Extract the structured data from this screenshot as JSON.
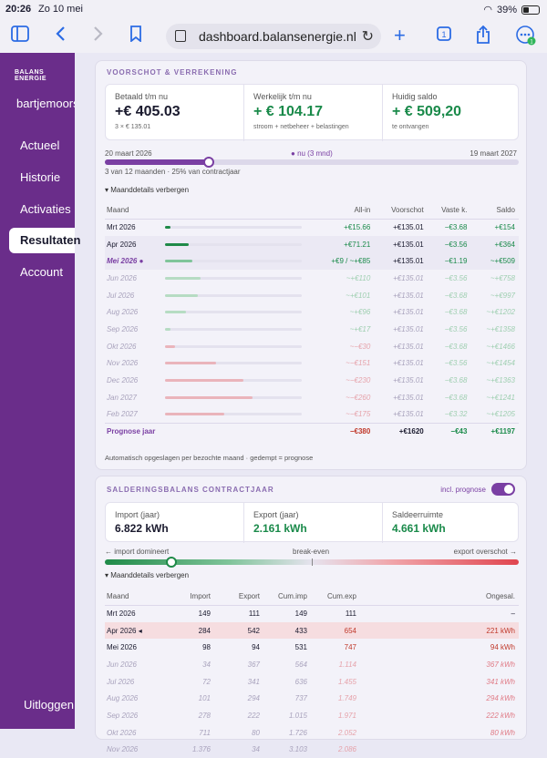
{
  "status": {
    "time": "20:26",
    "date": "Zo 10 mei",
    "battery": "39%"
  },
  "browser": {
    "url": "dashboard.balansenergie.nl",
    "tabs_count": "1",
    "badge": "1"
  },
  "sidebar": {
    "logo": "BALANS ENERGIE",
    "user": "bartjemoorsel",
    "items": [
      {
        "label": "Actueel",
        "active": false
      },
      {
        "label": "Historie",
        "active": false
      },
      {
        "label": "Activaties",
        "active": false
      },
      {
        "label": "Resultaten",
        "active": true
      },
      {
        "label": "Account",
        "active": false
      }
    ],
    "logout": "Uitloggen"
  },
  "voorschot": {
    "title": "VOORSCHOT & VERREKENING",
    "cards": [
      {
        "label": "Betaald t/m nu",
        "value": "+€ 405.03",
        "sub": "3 × € 135.01",
        "color": "#1a1a2e"
      },
      {
        "label": "Werkelijk t/m nu",
        "value": "+ € 104.17",
        "sub": "stroom + netbeheer + belastingen",
        "color": "#1a8a4a"
      },
      {
        "label": "Huidig saldo",
        "value": "+ € 509,20",
        "sub": "te ontvangen",
        "color": "#1a8a4a"
      }
    ],
    "start_date": "20 maart 2026",
    "now_label": "nu (3 mnd)",
    "end_date": "19 maart 2027",
    "progress": 0.25,
    "progress_text": "3 van 12 maanden · 25% van contractjaar",
    "toggle": "▾ Maanddetails verbergen",
    "headers": [
      "Maand",
      "All-in",
      "Voorschot",
      "Vaste k.",
      "Saldo"
    ],
    "rows": [
      {
        "month": "Mrt 2026",
        "allin": "+€15.66",
        "voorschot": "+€135.01",
        "vast": "−€3.68",
        "saldo": "+€154",
        "bar": 0.04,
        "barColor": "#1f8a48",
        "kind": "actual"
      },
      {
        "month": "Apr 2026",
        "allin": "+€71.21",
        "voorschot": "+€135.01",
        "vast": "−€3.56",
        "saldo": "+€364",
        "bar": 0.17,
        "barColor": "#1f8a48",
        "kind": "actual"
      },
      {
        "month": "Mei 2026 ●",
        "allin": "+€9 / ~+€85",
        "voorschot": "+€135.01",
        "vast": "−€1.19",
        "saldo": "~+€509",
        "bar": 0.2,
        "barColor": "#7fc49a",
        "kind": "current"
      },
      {
        "month": "Jun 2026",
        "allin": "~+€110",
        "voorschot": "+€135.01",
        "vast": "−€3.56",
        "saldo": "~+€758",
        "bar": 0.26,
        "barColor": "#b6dcc3",
        "kind": "forecast"
      },
      {
        "month": "Jul 2026",
        "allin": "~+€101",
        "voorschot": "+€135.01",
        "vast": "−€3.68",
        "saldo": "~+€997",
        "bar": 0.24,
        "barColor": "#b6dcc3",
        "kind": "forecast"
      },
      {
        "month": "Aug 2026",
        "allin": "~+€96",
        "voorschot": "+€135.01",
        "vast": "−€3.68",
        "saldo": "~+€1202",
        "bar": 0.15,
        "barColor": "#b6dcc3",
        "kind": "forecast"
      },
      {
        "month": "Sep 2026",
        "allin": "~+€17",
        "voorschot": "+€135.01",
        "vast": "−€3.56",
        "saldo": "~+€1358",
        "bar": 0.04,
        "barColor": "#b6dcc3",
        "kind": "forecast"
      },
      {
        "month": "Okt 2026",
        "allin": "~−€30",
        "voorschot": "+€135.01",
        "vast": "−€3.68",
        "saldo": "~+€1466",
        "bar": 0.07,
        "barColor": "#eab4bb",
        "kind": "forecast"
      },
      {
        "month": "Nov 2026",
        "allin": "~−€151",
        "voorschot": "+€135.01",
        "vast": "−€3.56",
        "saldo": "~+€1454",
        "bar": 0.37,
        "barColor": "#eab4bb",
        "kind": "forecast"
      },
      {
        "month": "Dec 2026",
        "allin": "~−€230",
        "voorschot": "+€135.01",
        "vast": "−€3.68",
        "saldo": "~+€1363",
        "bar": 0.57,
        "barColor": "#eab4bb",
        "kind": "forecast"
      },
      {
        "month": "Jan 2027",
        "allin": "~−€260",
        "voorschot": "+€135.01",
        "vast": "−€3.68",
        "saldo": "~+€1241",
        "bar": 0.64,
        "barColor": "#eab4bb",
        "kind": "forecast"
      },
      {
        "month": "Feb 2027",
        "allin": "~−€175",
        "voorschot": "+€135.01",
        "vast": "−€3.32",
        "saldo": "~+€1205",
        "bar": 0.43,
        "barColor": "#eab4bb",
        "kind": "forecast"
      }
    ],
    "total": {
      "label": "Prognose jaar",
      "allin": "−€380",
      "voorschot": "+€1620",
      "vast": "−€43",
      "saldo": "+€1197"
    },
    "footnote": "Automatisch opgeslagen per bezochte maand · gedempt = prognose"
  },
  "saldering": {
    "title": "SALDERINGSBALANS CONTRACTJAAR",
    "incl_label": "incl. prognose",
    "cards": [
      {
        "label": "Import (jaar)",
        "value": "6.822 kWh",
        "color": "#1a1a2e"
      },
      {
        "label": "Export (jaar)",
        "value": "2.161 kWh",
        "color": "#1a8a4a"
      },
      {
        "label": "Saldeerruimte",
        "value": "4.661 kWh",
        "color": "#1a8a4a"
      }
    ],
    "left_label": "← import domineert",
    "mid_label": "break-even",
    "right_label": "export overschot →",
    "balance": 0.16,
    "toggle": "▾ Maanddetails verbergen",
    "headers": [
      "Maand",
      "Import",
      "Export",
      "Cum.imp",
      "Cum.exp",
      "Ongesal."
    ],
    "rows": [
      {
        "month": "Mrt 2026",
        "imp": "149",
        "exp": "111",
        "cimp": "149",
        "cexp": "111",
        "ong": "–",
        "kind": "actual"
      },
      {
        "month": "Apr 2026 ◂",
        "imp": "284",
        "exp": "542",
        "cimp": "433",
        "cexp": "654",
        "ong": "221 kWh",
        "kind": "highlight"
      },
      {
        "month": "Mei 2026",
        "imp": "98",
        "exp": "94",
        "cimp": "531",
        "cexp": "747",
        "ong": "94 kWh",
        "kind": "actual"
      },
      {
        "month": "Jun 2026",
        "imp": "34",
        "exp": "367",
        "cimp": "564",
        "cexp": "1.114",
        "ong": "367 kWh",
        "kind": "forecast"
      },
      {
        "month": "Jul 2026",
        "imp": "72",
        "exp": "341",
        "cimp": "636",
        "cexp": "1.455",
        "ong": "341 kWh",
        "kind": "forecast"
      },
      {
        "month": "Aug 2026",
        "imp": "101",
        "exp": "294",
        "cimp": "737",
        "cexp": "1.749",
        "ong": "294 kWh",
        "kind": "forecast"
      },
      {
        "month": "Sep 2026",
        "imp": "278",
        "exp": "222",
        "cimp": "1.015",
        "cexp": "1.971",
        "ong": "222 kWh",
        "kind": "forecast"
      },
      {
        "month": "Okt 2026",
        "imp": "711",
        "exp": "80",
        "cimp": "1.726",
        "cexp": "2.052",
        "ong": "80 kWh",
        "kind": "forecast"
      },
      {
        "month": "Nov 2026",
        "imp": "1.376",
        "exp": "34",
        "cimp": "3.103",
        "cexp": "2.086",
        "ong": "",
        "kind": "forecast"
      }
    ]
  }
}
